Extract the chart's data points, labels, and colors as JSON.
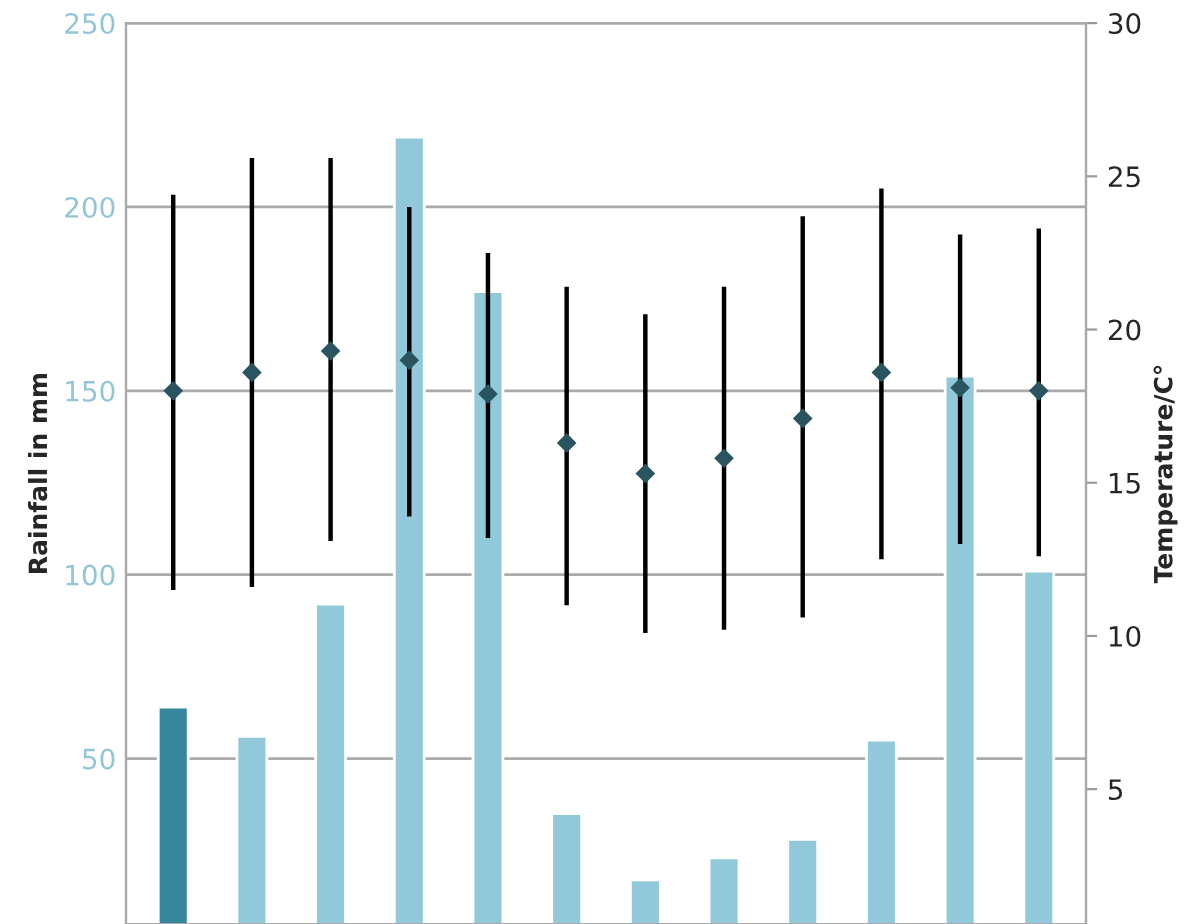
{
  "chart_data": {
    "type": "bar",
    "ylabel": "Rainfall in mm",
    "y2label": "Temperature/C°",
    "categories": [
      null,
      null,
      null,
      null,
      null,
      null,
      null,
      null,
      null,
      null,
      null,
      null
    ],
    "ylim": [
      5,
      250
    ],
    "yticks": [
      50,
      100,
      150,
      200,
      250
    ],
    "y2lim": [
      0.6,
      30
    ],
    "y2ticks": [
      5,
      10,
      15,
      20,
      25,
      30
    ],
    "grid": "y",
    "legend": false,
    "series": [
      {
        "colors": [
          "#37879c",
          "#92c9da",
          "#92c9da",
          "#92c9da",
          "#92c9da",
          "#92c9da",
          "#92c9da",
          "#92c9da",
          "#92c9da",
          "#92c9da",
          "#92c9da",
          "#92c9da"
        ],
        "values": [
          64,
          56,
          92,
          219,
          177,
          35,
          17,
          23,
          28,
          55,
          154,
          101
        ]
      },
      {
        "type": "scatter",
        "axis": "y2",
        "color": "#2a5560",
        "marker": "diamond",
        "values": [
          18.0,
          18.6,
          19.3,
          19.0,
          17.9,
          16.3,
          15.3,
          15.8,
          17.1,
          18.6,
          18.1,
          18.0
        ],
        "errors": [
          [
            11.5,
            24.4
          ],
          [
            11.6,
            25.6
          ],
          [
            13.1,
            25.6
          ],
          [
            13.9,
            24.0
          ],
          [
            13.2,
            22.5
          ],
          [
            11.0,
            21.4
          ],
          [
            10.1,
            20.5
          ],
          [
            10.2,
            21.4
          ],
          [
            10.6,
            23.7
          ],
          [
            12.5,
            24.6
          ],
          [
            13.0,
            23.1
          ],
          [
            12.6,
            23.3
          ]
        ]
      }
    ]
  }
}
